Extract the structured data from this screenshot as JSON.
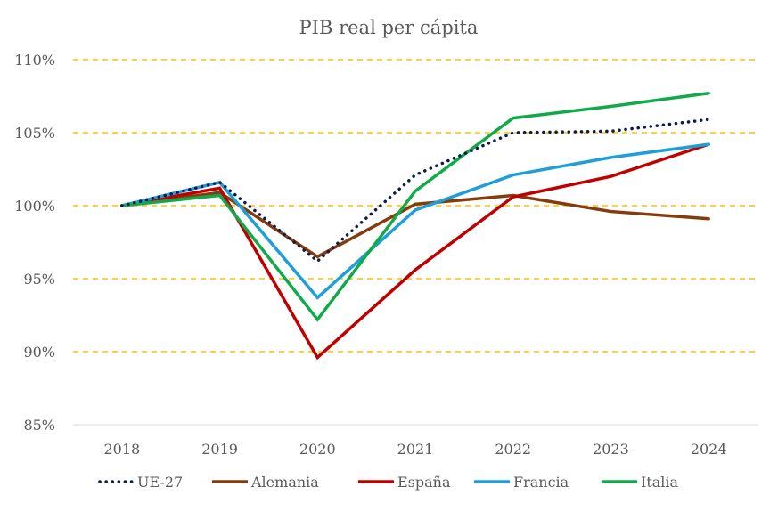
{
  "chart_data": {
    "type": "line",
    "title": "PIB real per cápita",
    "xlabel": "",
    "ylabel": "",
    "x": [
      "2018",
      "2019",
      "2020",
      "2021",
      "2022",
      "2023",
      "2024"
    ],
    "ylim": [
      85,
      110
    ],
    "yticks": [
      85,
      90,
      95,
      100,
      105,
      110
    ],
    "ytick_labels": [
      "85%",
      "90%",
      "95%",
      "100%",
      "105%",
      "110%"
    ],
    "grid": true,
    "grid_style": "dashed",
    "grid_color": "#FFC000",
    "legend_position": "bottom",
    "series": [
      {
        "name": "UE-27",
        "color": "#0B1A4F",
        "style": "dotted",
        "values": [
          100,
          101.6,
          96.2,
          102.1,
          105.0,
          105.1,
          105.9
        ]
      },
      {
        "name": "Alemania",
        "color": "#843C0C",
        "style": "solid",
        "values": [
          100,
          100.9,
          96.5,
          100.1,
          100.7,
          99.6,
          99.1
        ]
      },
      {
        "name": "España",
        "color": "#C00000",
        "style": "solid",
        "values": [
          100,
          101.2,
          89.6,
          95.6,
          100.6,
          102.0,
          104.2
        ]
      },
      {
        "name": "Francia",
        "color": "#1E9FD8",
        "style": "solid",
        "values": [
          100,
          101.6,
          93.7,
          99.7,
          102.1,
          103.3,
          104.2
        ]
      },
      {
        "name": "Italia",
        "color": "#11AA4A",
        "style": "solid",
        "values": [
          100,
          100.7,
          92.2,
          101.0,
          106.0,
          106.8,
          107.7
        ]
      }
    ]
  }
}
